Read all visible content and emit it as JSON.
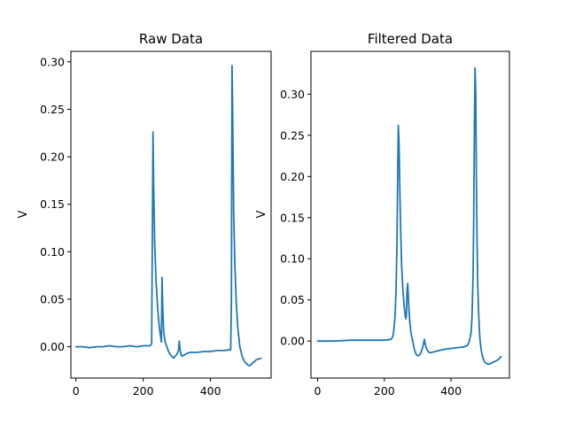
{
  "chart_data": [
    {
      "type": "line",
      "title": "Raw Data",
      "xlabel": "",
      "ylabel": "V",
      "xlim": [
        -15,
        580
      ],
      "ylim": [
        -0.033,
        0.311
      ],
      "xticks": [
        0,
        200,
        400
      ],
      "yticks": [
        0.0,
        0.05,
        0.1,
        0.15,
        0.2,
        0.25,
        0.3
      ],
      "ytick_labels": [
        "0.00",
        "0.05",
        "0.10",
        "0.15",
        "0.20",
        "0.25",
        "0.30"
      ],
      "color": "#1f77b4",
      "series": [
        {
          "x": [
            0,
            20,
            40,
            60,
            80,
            100,
            120,
            140,
            160,
            180,
            200,
            220,
            225,
            226,
            228,
            229,
            231,
            234,
            238,
            243,
            248,
            252,
            254,
            256,
            258,
            261,
            265,
            270,
            275,
            280,
            285,
            290,
            295,
            300,
            305,
            307,
            309,
            312,
            316,
            320,
            330,
            340,
            360,
            380,
            400,
            420,
            440,
            460,
            462,
            464,
            465,
            467,
            469,
            472,
            476,
            481,
            487,
            494,
            500,
            505,
            510,
            515,
            520,
            525,
            530,
            535,
            540,
            545,
            550
          ],
          "y": [
            0.0,
            0.0,
            -0.001,
            0.0,
            0.0,
            0.001,
            0.0,
            0.0,
            0.001,
            0.0,
            0.001,
            0.001,
            0.003,
            0.05,
            0.16,
            0.226,
            0.17,
            0.11,
            0.07,
            0.04,
            0.02,
            0.01,
            0.005,
            0.073,
            0.04,
            0.015,
            0.005,
            0.0,
            -0.005,
            -0.008,
            -0.01,
            -0.012,
            -0.01,
            -0.008,
            -0.004,
            0.006,
            -0.002,
            -0.008,
            -0.01,
            -0.009,
            -0.007,
            -0.006,
            -0.006,
            -0.005,
            -0.005,
            -0.004,
            -0.004,
            -0.003,
            0.05,
            0.296,
            0.27,
            0.2,
            0.14,
            0.09,
            0.05,
            0.02,
            0.0,
            -0.01,
            -0.015,
            -0.017,
            -0.019,
            -0.02,
            -0.019,
            -0.017,
            -0.016,
            -0.014,
            -0.013,
            -0.013,
            -0.012
          ]
        }
      ]
    },
    {
      "type": "line",
      "title": "Filtered Data",
      "xlabel": "",
      "ylabel": "V",
      "xlim": [
        -20,
        575
      ],
      "ylim": [
        -0.045,
        0.352
      ],
      "xticks": [
        0,
        200,
        400
      ],
      "yticks": [
        0.0,
        0.05,
        0.1,
        0.15,
        0.2,
        0.25,
        0.3
      ],
      "ytick_labels": [
        "0.00",
        "0.05",
        "0.10",
        "0.15",
        "0.20",
        "0.25",
        "0.30"
      ],
      "color": "#1f77b4",
      "series": [
        {
          "x": [
            0,
            20,
            50,
            100,
            150,
            200,
            220,
            225,
            228,
            232,
            235,
            238,
            240,
            242,
            244,
            248,
            252,
            256,
            260,
            264,
            266,
            268,
            270,
            273,
            276,
            280,
            285,
            290,
            295,
            300,
            305,
            310,
            315,
            318,
            320,
            323,
            326,
            330,
            335,
            340,
            350,
            360,
            370,
            380,
            400,
            420,
            440,
            450,
            455,
            460,
            463,
            466,
            468,
            470,
            472,
            474,
            476,
            478,
            480,
            483,
            486,
            490,
            495,
            500,
            505,
            510,
            515,
            520,
            525,
            530,
            535,
            540,
            545,
            550
          ],
          "y": [
            0.0,
            0.0,
            0.0,
            0.001,
            0.001,
            0.001,
            0.002,
            0.005,
            0.012,
            0.03,
            0.06,
            0.12,
            0.2,
            0.262,
            0.24,
            0.15,
            0.09,
            0.06,
            0.04,
            0.027,
            0.03,
            0.06,
            0.07,
            0.045,
            0.025,
            0.01,
            0.0,
            -0.01,
            -0.016,
            -0.018,
            -0.017,
            -0.014,
            -0.008,
            -0.002,
            0.002,
            -0.004,
            -0.009,
            -0.012,
            -0.014,
            -0.014,
            -0.013,
            -0.012,
            -0.011,
            -0.01,
            -0.009,
            -0.008,
            -0.007,
            -0.005,
            0.0,
            0.01,
            0.03,
            0.08,
            0.15,
            0.26,
            0.332,
            0.3,
            0.2,
            0.12,
            0.07,
            0.03,
            0.005,
            -0.01,
            -0.02,
            -0.025,
            -0.027,
            -0.028,
            -0.028,
            -0.027,
            -0.026,
            -0.025,
            -0.024,
            -0.023,
            -0.021,
            -0.019
          ]
        }
      ]
    }
  ]
}
